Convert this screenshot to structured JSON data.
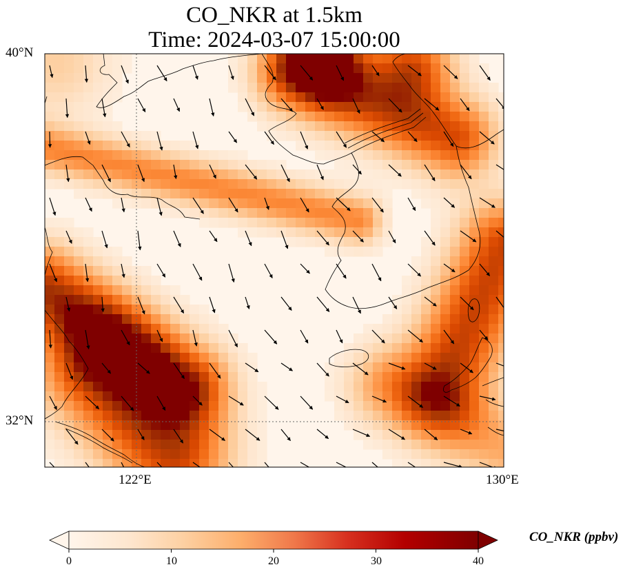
{
  "title": {
    "line1": "CO_NKR at 1.5km",
    "line2": "Time: 2024-03-07 15:00:00"
  },
  "axes": {
    "lat_top": "40°N",
    "lat_bottom": "32°N",
    "lon_left": "122°E",
    "lon_right": "130°E",
    "lat_range": [
      31,
      40
    ],
    "lon_range": [
      120,
      130
    ]
  },
  "colorbar": {
    "label": "CO_NKR (ppbv)",
    "min": 0,
    "max": 40,
    "ticks": [
      "0",
      "10",
      "20",
      "30",
      "40"
    ],
    "extend": "both",
    "colormap": [
      "#fff5eb",
      "#fee6ce",
      "#fdd0a2",
      "#fdae6b",
      "#fd8d3c",
      "#f16913",
      "#d94801",
      "#a63603",
      "#7f0000"
    ]
  },
  "colors": {
    "coastline": "#000000",
    "gridline": "#666666",
    "wind_arrow": "#000000"
  }
}
